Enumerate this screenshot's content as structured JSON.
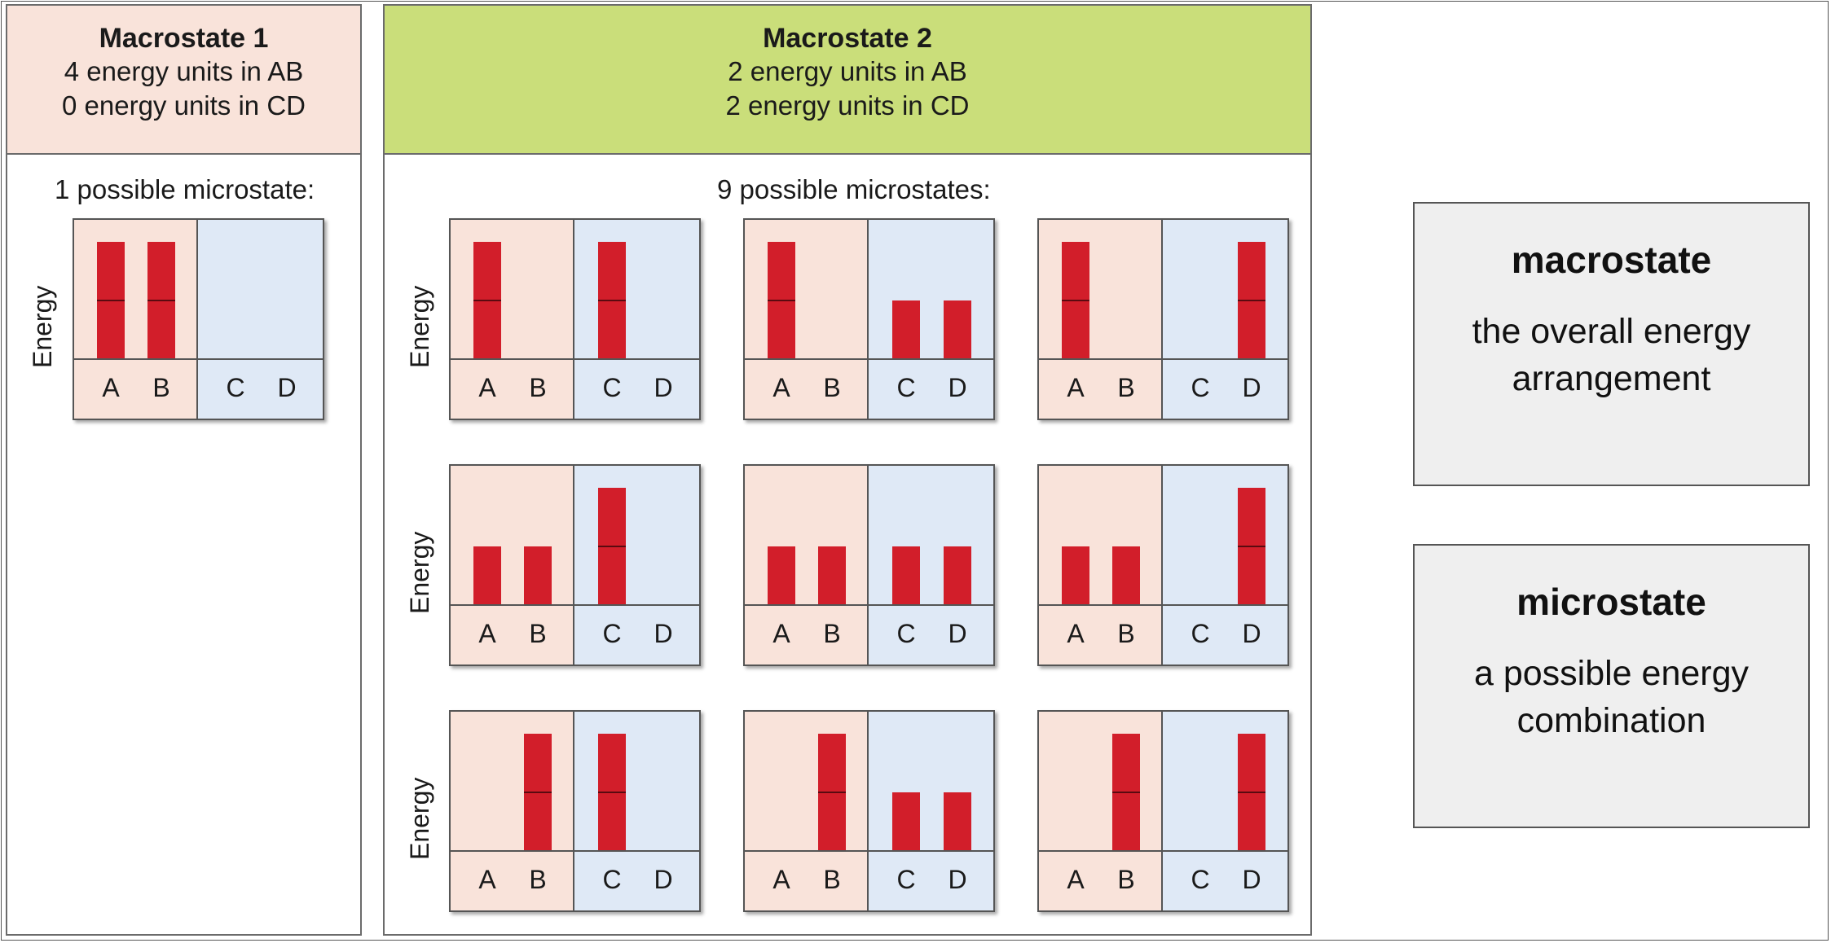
{
  "macrostate1": {
    "title": "Macrostate 1",
    "line1": "4 energy units in AB",
    "line2": "0 energy units in CD",
    "count_label": "1 possible microstate:",
    "header_color": "#f9e3da"
  },
  "macrostate2": {
    "title": "Macrostate 2",
    "line1": "2 energy units in AB",
    "line2": "2 energy units in CD",
    "count_label": "9 possible microstates:",
    "header_color": "#cade7a"
  },
  "axis_label": "Energy",
  "particle_labels": [
    "A",
    "B",
    "C",
    "D"
  ],
  "colors": {
    "ab_region": "#f9e3da",
    "cd_region": "#dfe9f6",
    "bar": "#d21e2a",
    "bar_divider": "#5a0a10"
  },
  "microstates": [
    {
      "panel": "macrostate1",
      "energies": [
        2,
        2,
        0,
        0
      ]
    },
    {
      "panel": "macrostate2",
      "energies": [
        2,
        0,
        2,
        0
      ]
    },
    {
      "panel": "macrostate2",
      "energies": [
        2,
        0,
        1,
        1
      ]
    },
    {
      "panel": "macrostate2",
      "energies": [
        2,
        0,
        0,
        2
      ]
    },
    {
      "panel": "macrostate2",
      "energies": [
        1,
        1,
        2,
        0
      ]
    },
    {
      "panel": "macrostate2",
      "energies": [
        1,
        1,
        1,
        1
      ]
    },
    {
      "panel": "macrostate2",
      "energies": [
        1,
        1,
        0,
        2
      ]
    },
    {
      "panel": "macrostate2",
      "energies": [
        0,
        2,
        2,
        0
      ]
    },
    {
      "panel": "macrostate2",
      "energies": [
        0,
        2,
        1,
        1
      ]
    },
    {
      "panel": "macrostate2",
      "energies": [
        0,
        2,
        0,
        2
      ]
    }
  ],
  "definitions": [
    {
      "term": "macrostate",
      "text": "the overall energy arrangement"
    },
    {
      "term": "microstate",
      "text": "a possible energy combination"
    }
  ]
}
